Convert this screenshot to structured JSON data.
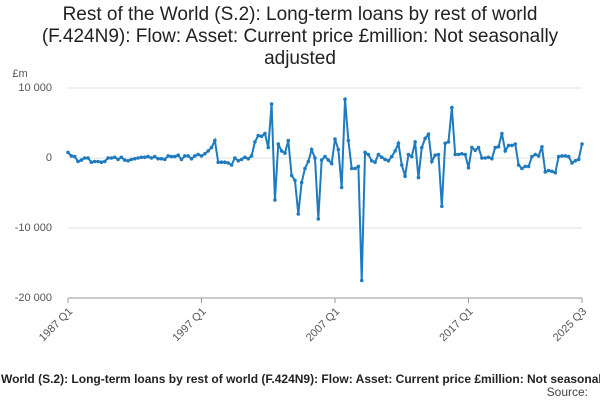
{
  "chart_data": {
    "type": "line",
    "title": "Rest of the World (S.2): Long-term loans by rest of world (F.424N9): Flow: Asset: Current price £million: Not seasonally adjusted",
    "y_label": "£m",
    "source": "Source:",
    "categories": [
      "1987 Q1",
      null,
      null,
      null,
      null,
      null,
      null,
      null,
      null,
      null,
      null,
      null,
      null,
      null,
      null,
      null,
      null,
      null,
      null,
      null,
      null,
      null,
      null,
      null,
      null,
      null,
      null,
      null,
      null,
      null,
      null,
      null,
      null,
      null,
      null,
      null,
      null,
      null,
      null,
      null,
      "1997 Q1",
      null,
      null,
      null,
      null,
      null,
      null,
      null,
      null,
      null,
      null,
      null,
      null,
      null,
      null,
      null,
      null,
      null,
      null,
      null,
      null,
      null,
      null,
      null,
      null,
      null,
      null,
      null,
      null,
      null,
      null,
      null,
      null,
      null,
      null,
      null,
      null,
      null,
      null,
      null,
      "2007 Q1",
      null,
      null,
      null,
      null,
      null,
      null,
      null,
      null,
      null,
      null,
      null,
      null,
      null,
      null,
      null,
      null,
      null,
      null,
      null,
      null,
      null,
      null,
      null,
      null,
      null,
      null,
      null,
      null,
      null,
      null,
      null,
      null,
      null,
      null,
      null,
      null,
      null,
      null,
      null,
      "2017 Q1",
      null,
      null,
      null,
      null,
      null,
      null,
      null,
      null,
      null,
      null,
      null,
      null,
      null,
      null,
      null,
      null,
      null,
      null,
      null,
      null,
      null,
      null,
      null,
      null,
      null,
      null,
      null,
      null,
      null,
      null,
      null,
      null,
      null,
      "2025 Q3"
    ],
    "series": [
      {
        "color": "#1f7bbf",
        "values": [
          800,
          300,
          200,
          -500,
          -300,
          0,
          0,
          -600,
          -500,
          -500,
          -600,
          -500,
          0,
          0,
          100,
          -200,
          100,
          -300,
          -400,
          -200,
          -100,
          0,
          100,
          100,
          200,
          0,
          200,
          -100,
          -100,
          -200,
          300,
          200,
          200,
          400,
          -200,
          300,
          300,
          -100,
          300,
          500,
          300,
          600,
          1000,
          1500,
          2500,
          -600,
          -600,
          -600,
          -700,
          -1000,
          0,
          -400,
          -200,
          100,
          -100,
          300,
          2300,
          3200,
          3100,
          3500,
          1500,
          7700,
          -6000,
          2000,
          1000,
          700,
          2500,
          -2500,
          -3200,
          -8000,
          -3500,
          -1500,
          -500,
          1200,
          0,
          -8700,
          -300,
          200,
          -300,
          -800,
          2700,
          1200,
          -4200,
          8400,
          2500,
          -1500,
          -1500,
          -1200,
          -17500,
          800,
          500,
          -400,
          -600,
          500,
          100,
          -200,
          -400,
          200,
          1000,
          2100,
          -1000,
          -2600,
          500,
          200,
          2300,
          -2800,
          1500,
          2800,
          3400,
          -500,
          400,
          500,
          -6900,
          2100,
          2300,
          7200,
          500,
          500,
          600,
          500,
          -1400,
          1500,
          1100,
          1500,
          0,
          0,
          100,
          -100,
          1500,
          1600,
          3500,
          1000,
          1800,
          1800,
          2000,
          -1000,
          -1500,
          -1200,
          -1200,
          200,
          500,
          300,
          1600,
          -2000,
          -1800,
          -1900,
          -2100,
          200,
          300,
          300,
          200,
          -700,
          -400,
          -200,
          2000
        ]
      }
    ],
    "ylim": [
      -20000,
      10000
    ],
    "yticks": [
      {
        "value": -20000,
        "label": "-20 000"
      },
      {
        "value": -10000,
        "label": "-10 000"
      },
      0,
      {
        "value": 10000,
        "label": "10 000"
      }
    ],
    "grid": true
  }
}
